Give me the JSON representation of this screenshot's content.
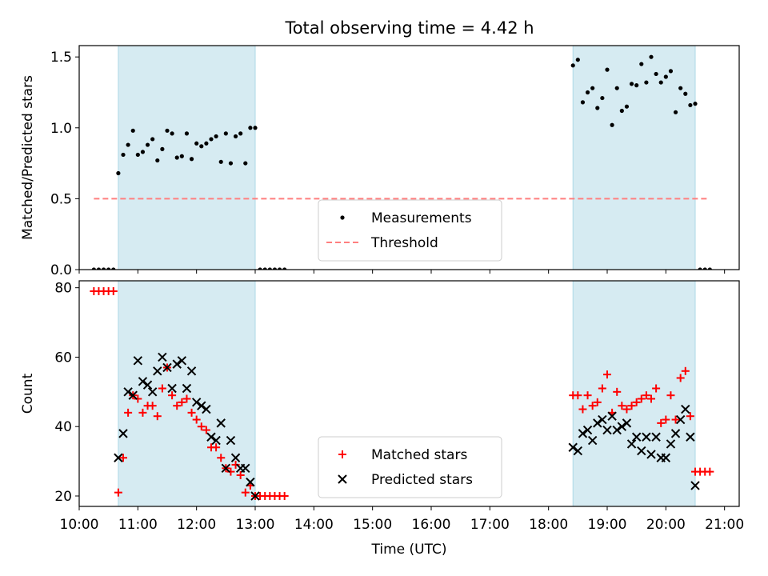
{
  "title": "Total observing time = 4.42 h",
  "chart_data": [
    {
      "type": "scatter",
      "panel": "top",
      "ylabel": "Matched/Predicted stars",
      "xlabel": "",
      "xlim": [
        "10:00",
        "21:15"
      ],
      "ylim": [
        0,
        1.58
      ],
      "yticks": [
        0.0,
        0.5,
        1.0,
        1.5
      ],
      "ytick_labels": [
        "0.0",
        "0.5",
        "1.0",
        "1.5"
      ],
      "grid": false,
      "legend_position": "bottom-center",
      "shaded_intervals": [
        [
          "10:40",
          "13:00"
        ],
        [
          "18:25",
          "20:30"
        ]
      ],
      "shade_color": "#add8e6",
      "threshold": {
        "name": "Threshold",
        "value": 0.5,
        "x_range": [
          "10:15",
          "20:45"
        ],
        "color": "#ff7f7f"
      },
      "series": [
        {
          "name": "Measurements",
          "marker": "dot",
          "color": "#000000",
          "points": [
            [
              "10:15",
              0
            ],
            [
              "10:20",
              0
            ],
            [
              "10:25",
              0
            ],
            [
              "10:30",
              0
            ],
            [
              "10:35",
              0
            ],
            [
              "10:40",
              0.68
            ],
            [
              "10:45",
              0.81
            ],
            [
              "10:50",
              0.88
            ],
            [
              "10:55",
              0.98
            ],
            [
              "11:00",
              0.81
            ],
            [
              "11:05",
              0.83
            ],
            [
              "11:10",
              0.88
            ],
            [
              "11:15",
              0.92
            ],
            [
              "11:20",
              0.77
            ],
            [
              "11:25",
              0.85
            ],
            [
              "11:30",
              0.98
            ],
            [
              "11:35",
              0.96
            ],
            [
              "11:40",
              0.79
            ],
            [
              "11:45",
              0.8
            ],
            [
              "11:50",
              0.96
            ],
            [
              "11:55",
              0.78
            ],
            [
              "12:00",
              0.89
            ],
            [
              "12:05",
              0.87
            ],
            [
              "12:10",
              0.89
            ],
            [
              "12:15",
              0.92
            ],
            [
              "12:20",
              0.94
            ],
            [
              "12:25",
              0.76
            ],
            [
              "12:30",
              0.96
            ],
            [
              "12:35",
              0.75
            ],
            [
              "12:40",
              0.94
            ],
            [
              "12:45",
              0.96
            ],
            [
              "12:50",
              0.75
            ],
            [
              "12:55",
              1.0
            ],
            [
              "13:00",
              1.0
            ],
            [
              "13:05",
              0
            ],
            [
              "13:10",
              0
            ],
            [
              "13:15",
              0
            ],
            [
              "13:20",
              0
            ],
            [
              "13:25",
              0
            ],
            [
              "13:30",
              0
            ],
            [
              "18:25",
              1.44
            ],
            [
              "18:30",
              1.48
            ],
            [
              "18:35",
              1.18
            ],
            [
              "18:40",
              1.25
            ],
            [
              "18:45",
              1.28
            ],
            [
              "18:50",
              1.14
            ],
            [
              "18:55",
              1.21
            ],
            [
              "19:00",
              1.41
            ],
            [
              "19:05",
              1.02
            ],
            [
              "19:10",
              1.28
            ],
            [
              "19:15",
              1.12
            ],
            [
              "19:20",
              1.15
            ],
            [
              "19:25",
              1.31
            ],
            [
              "19:30",
              1.3
            ],
            [
              "19:35",
              1.45
            ],
            [
              "19:40",
              1.32
            ],
            [
              "19:45",
              1.5
            ],
            [
              "19:50",
              1.38
            ],
            [
              "19:55",
              1.32
            ],
            [
              "20:00",
              1.36
            ],
            [
              "20:05",
              1.4
            ],
            [
              "20:10",
              1.11
            ],
            [
              "20:15",
              1.28
            ],
            [
              "20:20",
              1.24
            ],
            [
              "20:25",
              1.16
            ],
            [
              "20:30",
              1.17
            ],
            [
              "20:35",
              0
            ],
            [
              "20:40",
              0
            ],
            [
              "20:45",
              0
            ]
          ]
        }
      ]
    },
    {
      "type": "scatter",
      "panel": "bottom",
      "xlabel": "Time (UTC)",
      "ylabel": "Count",
      "xlim": [
        "10:00",
        "21:15"
      ],
      "ylim": [
        17,
        82
      ],
      "xticks": [
        "10:00",
        "11:00",
        "12:00",
        "13:00",
        "14:00",
        "15:00",
        "16:00",
        "17:00",
        "18:00",
        "19:00",
        "20:00",
        "21:00"
      ],
      "yticks": [
        20,
        40,
        60,
        80
      ],
      "ytick_labels": [
        "20",
        "40",
        "60",
        "80"
      ],
      "grid": false,
      "legend_position": "bottom-center",
      "shaded_intervals": [
        [
          "10:40",
          "13:00"
        ],
        [
          "18:25",
          "20:30"
        ]
      ],
      "series": [
        {
          "name": "Matched stars",
          "marker": "plus",
          "color": "#ff0000",
          "points": [
            [
              "10:15",
              79
            ],
            [
              "10:20",
              79
            ],
            [
              "10:25",
              79
            ],
            [
              "10:30",
              79
            ],
            [
              "10:35",
              79
            ],
            [
              "10:40",
              21
            ],
            [
              "10:45",
              31
            ],
            [
              "10:50",
              44
            ],
            [
              "10:55",
              49
            ],
            [
              "11:00",
              48
            ],
            [
              "11:05",
              44
            ],
            [
              "11:10",
              46
            ],
            [
              "11:15",
              46
            ],
            [
              "11:20",
              43
            ],
            [
              "11:25",
              51
            ],
            [
              "11:30",
              57
            ],
            [
              "11:35",
              49
            ],
            [
              "11:40",
              46
            ],
            [
              "11:45",
              47
            ],
            [
              "11:50",
              48
            ],
            [
              "11:55",
              44
            ],
            [
              "12:00",
              42
            ],
            [
              "12:05",
              40
            ],
            [
              "12:10",
              39
            ],
            [
              "12:15",
              34
            ],
            [
              "12:20",
              34
            ],
            [
              "12:25",
              31
            ],
            [
              "12:30",
              28
            ],
            [
              "12:35",
              27
            ],
            [
              "12:40",
              29
            ],
            [
              "12:45",
              26
            ],
            [
              "12:50",
              21
            ],
            [
              "12:55",
              23
            ],
            [
              "13:00",
              20
            ],
            [
              "13:05",
              20
            ],
            [
              "13:10",
              20
            ],
            [
              "13:15",
              20
            ],
            [
              "13:20",
              20
            ],
            [
              "13:25",
              20
            ],
            [
              "13:30",
              20
            ],
            [
              "18:25",
              49
            ],
            [
              "18:30",
              49
            ],
            [
              "18:35",
              45
            ],
            [
              "18:40",
              49
            ],
            [
              "18:45",
              46
            ],
            [
              "18:50",
              47
            ],
            [
              "18:55",
              51
            ],
            [
              "19:00",
              55
            ],
            [
              "19:05",
              44
            ],
            [
              "19:10",
              50
            ],
            [
              "19:15",
              46
            ],
            [
              "19:20",
              45
            ],
            [
              "19:25",
              46
            ],
            [
              "19:30",
              47
            ],
            [
              "19:35",
              48
            ],
            [
              "19:40",
              49
            ],
            [
              "19:45",
              48
            ],
            [
              "19:50",
              51
            ],
            [
              "19:55",
              41
            ],
            [
              "20:00",
              42
            ],
            [
              "20:05",
              49
            ],
            [
              "20:10",
              42
            ],
            [
              "20:15",
              54
            ],
            [
              "20:20",
              56
            ],
            [
              "20:25",
              43
            ],
            [
              "20:30",
              27
            ],
            [
              "20:35",
              27
            ],
            [
              "20:40",
              27
            ],
            [
              "20:45",
              27
            ]
          ]
        },
        {
          "name": "Predicted stars",
          "marker": "x",
          "color": "#000000",
          "points": [
            [
              "10:40",
              31
            ],
            [
              "10:45",
              38
            ],
            [
              "10:50",
              50
            ],
            [
              "10:55",
              49
            ],
            [
              "11:00",
              59
            ],
            [
              "11:05",
              53
            ],
            [
              "11:10",
              52
            ],
            [
              "11:15",
              50
            ],
            [
              "11:20",
              56
            ],
            [
              "11:25",
              60
            ],
            [
              "11:30",
              57
            ],
            [
              "11:35",
              51
            ],
            [
              "11:40",
              58
            ],
            [
              "11:45",
              59
            ],
            [
              "11:50",
              51
            ],
            [
              "11:55",
              56
            ],
            [
              "12:00",
              47
            ],
            [
              "12:05",
              46
            ],
            [
              "12:10",
              45
            ],
            [
              "12:15",
              37
            ],
            [
              "12:20",
              36
            ],
            [
              "12:25",
              41
            ],
            [
              "12:30",
              28
            ],
            [
              "12:35",
              36
            ],
            [
              "12:40",
              31
            ],
            [
              "12:45",
              28
            ],
            [
              "12:50",
              28
            ],
            [
              "12:55",
              24
            ],
            [
              "13:00",
              20
            ],
            [
              "18:25",
              34
            ],
            [
              "18:30",
              33
            ],
            [
              "18:35",
              38
            ],
            [
              "18:40",
              39
            ],
            [
              "18:45",
              36
            ],
            [
              "18:50",
              41
            ],
            [
              "18:55",
              42
            ],
            [
              "19:00",
              39
            ],
            [
              "19:05",
              43
            ],
            [
              "19:10",
              39
            ],
            [
              "19:15",
              40
            ],
            [
              "19:20",
              41
            ],
            [
              "19:25",
              35
            ],
            [
              "19:30",
              37
            ],
            [
              "19:35",
              33
            ],
            [
              "19:40",
              37
            ],
            [
              "19:45",
              32
            ],
            [
              "19:50",
              37
            ],
            [
              "19:55",
              31
            ],
            [
              "20:00",
              31
            ],
            [
              "20:05",
              35
            ],
            [
              "20:10",
              38
            ],
            [
              "20:15",
              42
            ],
            [
              "20:20",
              45
            ],
            [
              "20:25",
              37
            ],
            [
              "20:30",
              23
            ]
          ]
        }
      ]
    }
  ]
}
